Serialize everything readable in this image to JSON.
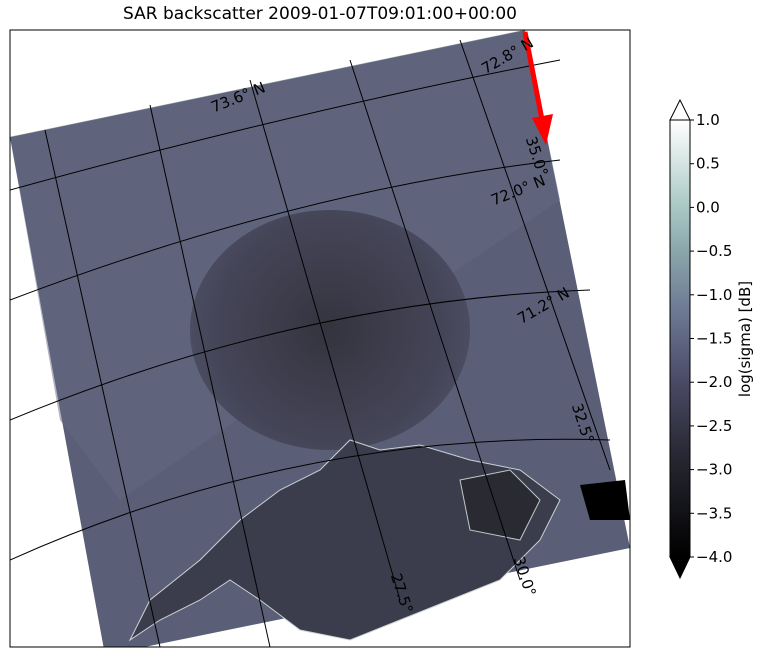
{
  "title": "SAR backscatter 2009-01-07T09:01:00+00:00",
  "map": {
    "latitude_labels": [
      "73.6° N",
      "72.8° N",
      "72.0° N",
      "71.2° N"
    ],
    "longitude_labels": [
      "35.0°",
      "32.5°",
      "30.0°",
      "27.5°"
    ]
  },
  "colorbar": {
    "label": "log(sigma) [dB]",
    "lim": [
      -4,
      1
    ],
    "extend": "both",
    "ticks": [
      {
        "value": 1,
        "label": "1.0"
      },
      {
        "value": 0.5,
        "label": "0.5"
      },
      {
        "value": 0,
        "label": "0.0"
      },
      {
        "value": -0.5,
        "label": "−0.5"
      },
      {
        "value": -1,
        "label": "−1.0"
      },
      {
        "value": -1.5,
        "label": "−1.5"
      },
      {
        "value": -2,
        "label": "−2.0"
      },
      {
        "value": -2.5,
        "label": "−2.5"
      },
      {
        "value": -3,
        "label": "−3.0"
      },
      {
        "value": -3.5,
        "label": "−3.5"
      },
      {
        "value": -4,
        "label": "−4.0"
      }
    ]
  }
}
